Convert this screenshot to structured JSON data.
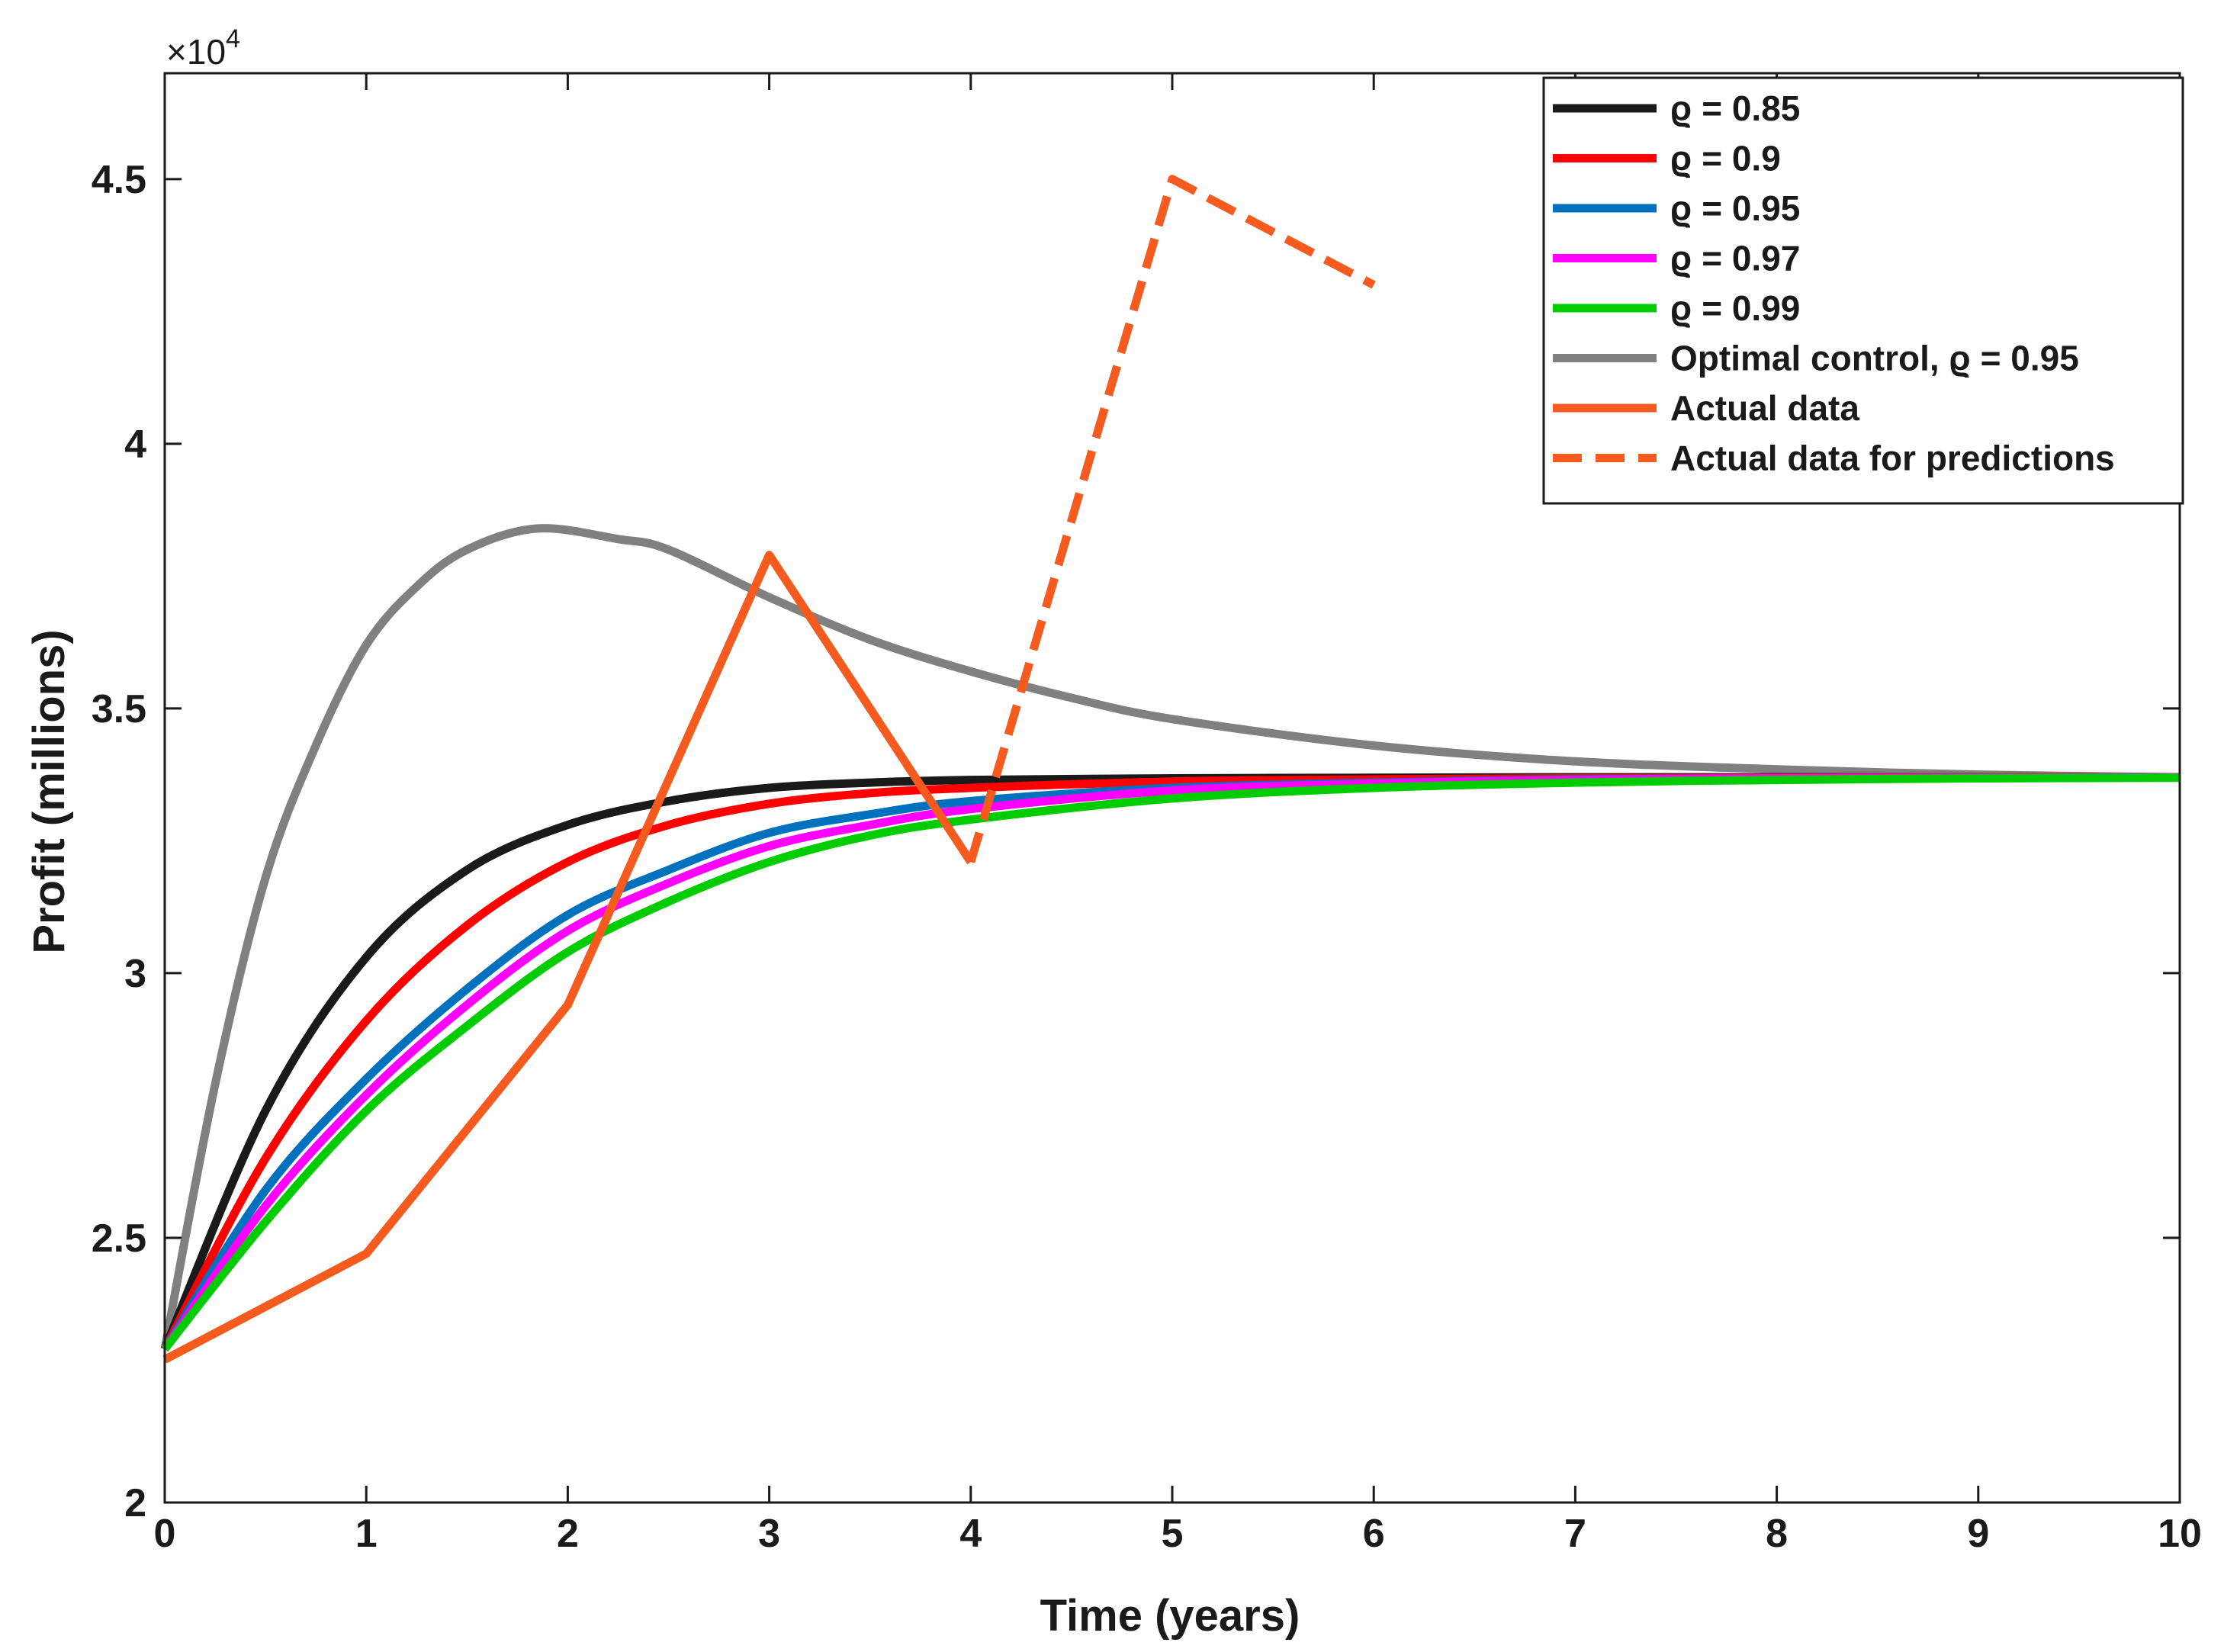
{
  "chart_data": {
    "type": "line",
    "xlabel": "Time (years)",
    "ylabel": "Profit (millions)",
    "xlim": [
      0,
      10
    ],
    "ylim": [
      20000,
      47000
    ],
    "x_ticks": [
      0,
      1,
      2,
      3,
      4,
      5,
      6,
      7,
      8,
      9,
      10
    ],
    "y_ticks": [
      20000,
      25000,
      30000,
      35000,
      40000,
      45000
    ],
    "x_tick_labels": [
      "0",
      "1",
      "2",
      "3",
      "4",
      "5",
      "6",
      "7",
      "8",
      "9",
      "10"
    ],
    "y_tick_labels": [
      "2",
      "2.5",
      "3",
      "3.5",
      "4",
      "4.5"
    ],
    "y_exponent_label": "×10",
    "y_exponent_power": "4",
    "grid": false,
    "legend_position": "top-right",
    "series": [
      {
        "name": "ϱ = 0.85",
        "color": "#1a1a1a",
        "style": "solid",
        "x": [
          0,
          0.5,
          1,
          1.5,
          2,
          2.5,
          3,
          3.5,
          4,
          5,
          6,
          7,
          8,
          9,
          10
        ],
        "values": [
          22900,
          27400,
          30300,
          31950,
          32800,
          33250,
          33500,
          33600,
          33650,
          33680,
          33690,
          33700,
          33700,
          33700,
          33700
        ]
      },
      {
        "name": "ϱ = 0.9",
        "color": "#ff0000",
        "style": "solid",
        "x": [
          0,
          0.5,
          1,
          1.5,
          2,
          2.5,
          3,
          3.5,
          4,
          5,
          6,
          7,
          8,
          9,
          10
        ],
        "values": [
          22900,
          26500,
          29100,
          30900,
          32100,
          32800,
          33200,
          33400,
          33500,
          33620,
          33660,
          33680,
          33690,
          33700,
          33700
        ]
      },
      {
        "name": "ϱ = 0.95",
        "color": "#0072bd",
        "style": "solid",
        "x": [
          0,
          0.5,
          1,
          1.5,
          2,
          2.5,
          3,
          3.5,
          4,
          5,
          6,
          7,
          8,
          9,
          10
        ],
        "values": [
          22900,
          25900,
          28000,
          29700,
          31100,
          31950,
          32650,
          33000,
          33250,
          33500,
          33600,
          33660,
          33680,
          33690,
          33700
        ]
      },
      {
        "name": "ϱ = 0.97",
        "color": "#ff00ff",
        "style": "solid",
        "x": [
          0,
          0.5,
          1,
          1.5,
          2,
          2.5,
          3,
          3.5,
          4,
          5,
          6,
          7,
          8,
          9,
          10
        ],
        "values": [
          22900,
          25600,
          27700,
          29400,
          30800,
          31700,
          32400,
          32800,
          33100,
          33450,
          33580,
          33650,
          33680,
          33690,
          33700
        ]
      },
      {
        "name": "ϱ = 0.99",
        "color": "#00cc00",
        "style": "solid",
        "x": [
          0,
          0.5,
          1,
          1.5,
          2,
          2.5,
          3,
          3.5,
          4,
          5,
          6,
          7,
          8,
          9,
          10
        ],
        "values": [
          22900,
          25300,
          27400,
          29000,
          30400,
          31350,
          32100,
          32600,
          32900,
          33300,
          33500,
          33600,
          33650,
          33680,
          33690
        ]
      },
      {
        "name": "Optimal control, ϱ = 0.95",
        "color": "#808080",
        "style": "solid",
        "x": [
          0,
          0.25,
          0.5,
          0.75,
          1,
          1.25,
          1.5,
          1.85,
          2.25,
          2.5,
          3,
          3.5,
          4,
          4.5,
          5,
          6,
          7,
          8,
          9,
          10
        ],
        "values": [
          22900,
          27900,
          31800,
          34300,
          36200,
          37300,
          38000,
          38400,
          38200,
          38000,
          37100,
          36300,
          35700,
          35200,
          34800,
          34300,
          34000,
          33850,
          33750,
          33700
        ]
      },
      {
        "name": "Actual data",
        "color": "#f55a1e",
        "style": "solid",
        "x": [
          0,
          1,
          2,
          3,
          4
        ],
        "values": [
          22700,
          24700,
          29400,
          37900,
          32100
        ]
      },
      {
        "name": "Actual data for predictions",
        "color": "#f55a1e",
        "style": "dashed",
        "x": [
          4,
          5,
          6
        ],
        "values": [
          32100,
          45000,
          43000
        ]
      }
    ]
  }
}
